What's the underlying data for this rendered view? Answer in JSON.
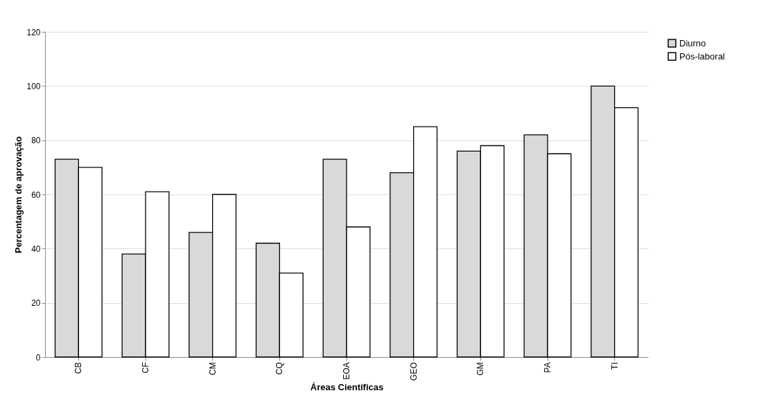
{
  "chart_data": {
    "type": "bar",
    "xlabel": "Áreas Científicas",
    "ylabel": "Percentagem de aprovação",
    "categories": [
      "CB",
      "CF",
      "CM",
      "CQ",
      "EOA",
      "GEO",
      "GM",
      "PA",
      "TI"
    ],
    "series": [
      {
        "name": "Diurno",
        "color": "#d9d9d9",
        "values": [
          73,
          38,
          46,
          42,
          73,
          68,
          76,
          82,
          100
        ]
      },
      {
        "name": "Pós-laboral",
        "color": "#ffffff",
        "values": [
          70,
          61,
          60,
          31,
          48,
          85,
          78,
          75,
          92
        ]
      }
    ],
    "ylim": [
      0,
      120
    ],
    "yticks": [
      0,
      20,
      40,
      60,
      80,
      100,
      120
    ],
    "grid": "y",
    "legend": "right"
  }
}
